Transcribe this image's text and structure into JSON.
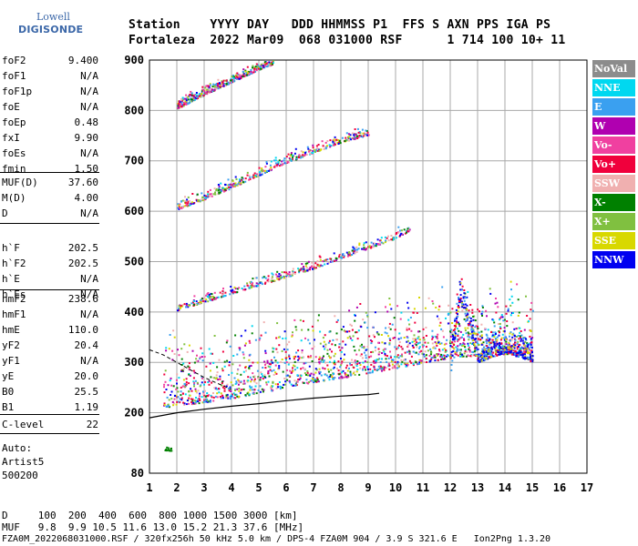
{
  "logo": {
    "line1": "Lowell",
    "line2": "DIGISONDE"
  },
  "header": {
    "line1": "Station    YYYY DAY   DDD HHMMSS P1  FFS S AXN PPS IGA PS",
    "line2": "Fortaleza  2022 Mar09  068 031000 RSF      1 714 100 10+ 11"
  },
  "params_group1": [
    {
      "name": "foF2",
      "value": "9.400"
    },
    {
      "name": "foF1",
      "value": "N/A"
    },
    {
      "name": "foF1p",
      "value": "N/A"
    },
    {
      "name": "foE",
      "value": "N/A"
    },
    {
      "name": "foEp",
      "value": "0.48"
    },
    {
      "name": "fxI",
      "value": "9.90"
    },
    {
      "name": "foEs",
      "value": "N/A"
    },
    {
      "name": "fmin",
      "value": "1.50"
    }
  ],
  "params_group2": [
    {
      "name": "MUF(D)",
      "value": "37.60"
    },
    {
      "name": "M(D)",
      "value": "4.00"
    },
    {
      "name": "D",
      "value": "N/A"
    }
  ],
  "params_group3": [
    {
      "name": "h`F",
      "value": "202.5"
    },
    {
      "name": "h`F2",
      "value": "202.5"
    },
    {
      "name": "h`E",
      "value": "N/A"
    },
    {
      "name": "h`Es",
      "value": "N/A"
    }
  ],
  "params_group4": [
    {
      "name": "hmF2",
      "value": "238.6"
    },
    {
      "name": "hmF1",
      "value": "N/A"
    },
    {
      "name": "hmE",
      "value": "110.0"
    },
    {
      "name": "yF2",
      "value": "20.4"
    },
    {
      "name": "yF1",
      "value": "N/A"
    },
    {
      "name": "yE",
      "value": "20.0"
    },
    {
      "name": "B0",
      "value": "25.5"
    },
    {
      "name": "B1",
      "value": "1.19"
    }
  ],
  "clevel": {
    "name": "C-level",
    "value": "22"
  },
  "auto": {
    "line1": "Auto:",
    "line2": "Artist5",
    "line3": "500200"
  },
  "legend": [
    {
      "label": "NoVal",
      "color": "#8c8c8c"
    },
    {
      "label": "NNE",
      "color": "#00d8f0"
    },
    {
      "label": "E",
      "color": "#3aa0f0"
    },
    {
      "label": "W",
      "color": "#b000b0"
    },
    {
      "label": "Vo-",
      "color": "#f040a0"
    },
    {
      "label": "Vo+",
      "color": "#f0003c"
    },
    {
      "label": "SSW",
      "color": "#f0b0b0"
    },
    {
      "label": "X-",
      "color": "#008000"
    },
    {
      "label": "X+",
      "color": "#80c040"
    },
    {
      "label": "SSE",
      "color": "#d8d800"
    },
    {
      "label": "NNW",
      "color": "#0000f0"
    }
  ],
  "footer": {
    "line1": "D     100  200  400  600  800 1000 1500 3000 [km]",
    "line2": "MUF   9.8  9.9 10.5 11.6 13.0 15.2 21.3 37.6 [MHz]",
    "line3": "FZA0M_2022068031000.RSF / 320fx256h 50 kHz 5.0 km / DPS-4 FZA0M 904 / 3.9 S 321.6 E   Ion2Png 1.3.20"
  },
  "chart_data": {
    "type": "scatter",
    "xlabel": "",
    "ylabel": "",
    "xlim": [
      1,
      17
    ],
    "ylim": [
      80,
      900
    ],
    "x_ticks": [
      1,
      2,
      3,
      4,
      5,
      6,
      7,
      8,
      9,
      10,
      11,
      12,
      13,
      14,
      15,
      16,
      17
    ],
    "y_ticks": [
      80,
      200,
      300,
      400,
      500,
      600,
      700,
      800,
      900
    ],
    "grid": true,
    "legend_position": "right",
    "echo_traces": [
      {
        "name": "F trace (1st hop)",
        "points": [
          [
            1.5,
            212
          ],
          [
            2,
            215
          ],
          [
            3,
            222
          ],
          [
            4,
            230
          ],
          [
            5,
            240
          ],
          [
            6,
            252
          ],
          [
            7,
            262
          ],
          [
            8,
            270
          ],
          [
            9,
            280
          ],
          [
            10,
            290
          ],
          [
            11,
            300
          ],
          [
            12,
            310
          ],
          [
            13,
            315
          ],
          [
            14,
            318
          ],
          [
            15,
            320
          ]
        ]
      },
      {
        "name": "2nd hop",
        "points": [
          [
            2,
            412
          ],
          [
            3,
            428
          ],
          [
            4,
            445
          ],
          [
            5,
            462
          ],
          [
            6,
            478
          ],
          [
            7,
            495
          ],
          [
            8,
            515
          ],
          [
            9,
            535
          ],
          [
            10,
            555
          ],
          [
            10.5,
            570
          ]
        ]
      },
      {
        "name": "3rd hop",
        "points": [
          [
            2,
            612
          ],
          [
            3,
            632
          ],
          [
            4,
            655
          ],
          [
            5,
            680
          ],
          [
            6,
            705
          ],
          [
            7,
            725
          ],
          [
            8,
            745
          ],
          [
            9,
            760
          ]
        ]
      },
      {
        "name": "4th hop",
        "points": [
          [
            2,
            812
          ],
          [
            3,
            840
          ],
          [
            4,
            865
          ],
          [
            5,
            890
          ],
          [
            5.5,
            900
          ]
        ]
      },
      {
        "name": "spread F",
        "points": [
          [
            12,
            300
          ],
          [
            13,
            320
          ],
          [
            14,
            340
          ],
          [
            15,
            320
          ],
          [
            12.5,
            420
          ],
          [
            12.3,
            440
          ]
        ]
      },
      {
        "name": "low echo",
        "points": [
          [
            1.5,
            130
          ],
          [
            1.8,
            128
          ]
        ]
      }
    ],
    "profile_curve": [
      [
        1.0,
        190
      ],
      [
        2,
        200
      ],
      [
        3,
        207
      ],
      [
        4,
        213
      ],
      [
        5,
        218
      ],
      [
        6,
        224
      ],
      [
        7,
        229
      ],
      [
        8,
        233
      ],
      [
        9,
        236
      ],
      [
        9.4,
        238.6
      ]
    ],
    "dashed_curve": [
      [
        1.0,
        325
      ],
      [
        1.5,
        315
      ],
      [
        2,
        300
      ],
      [
        2.5,
        285
      ],
      [
        3,
        270
      ],
      [
        3.5,
        258
      ],
      [
        4,
        246
      ]
    ]
  }
}
